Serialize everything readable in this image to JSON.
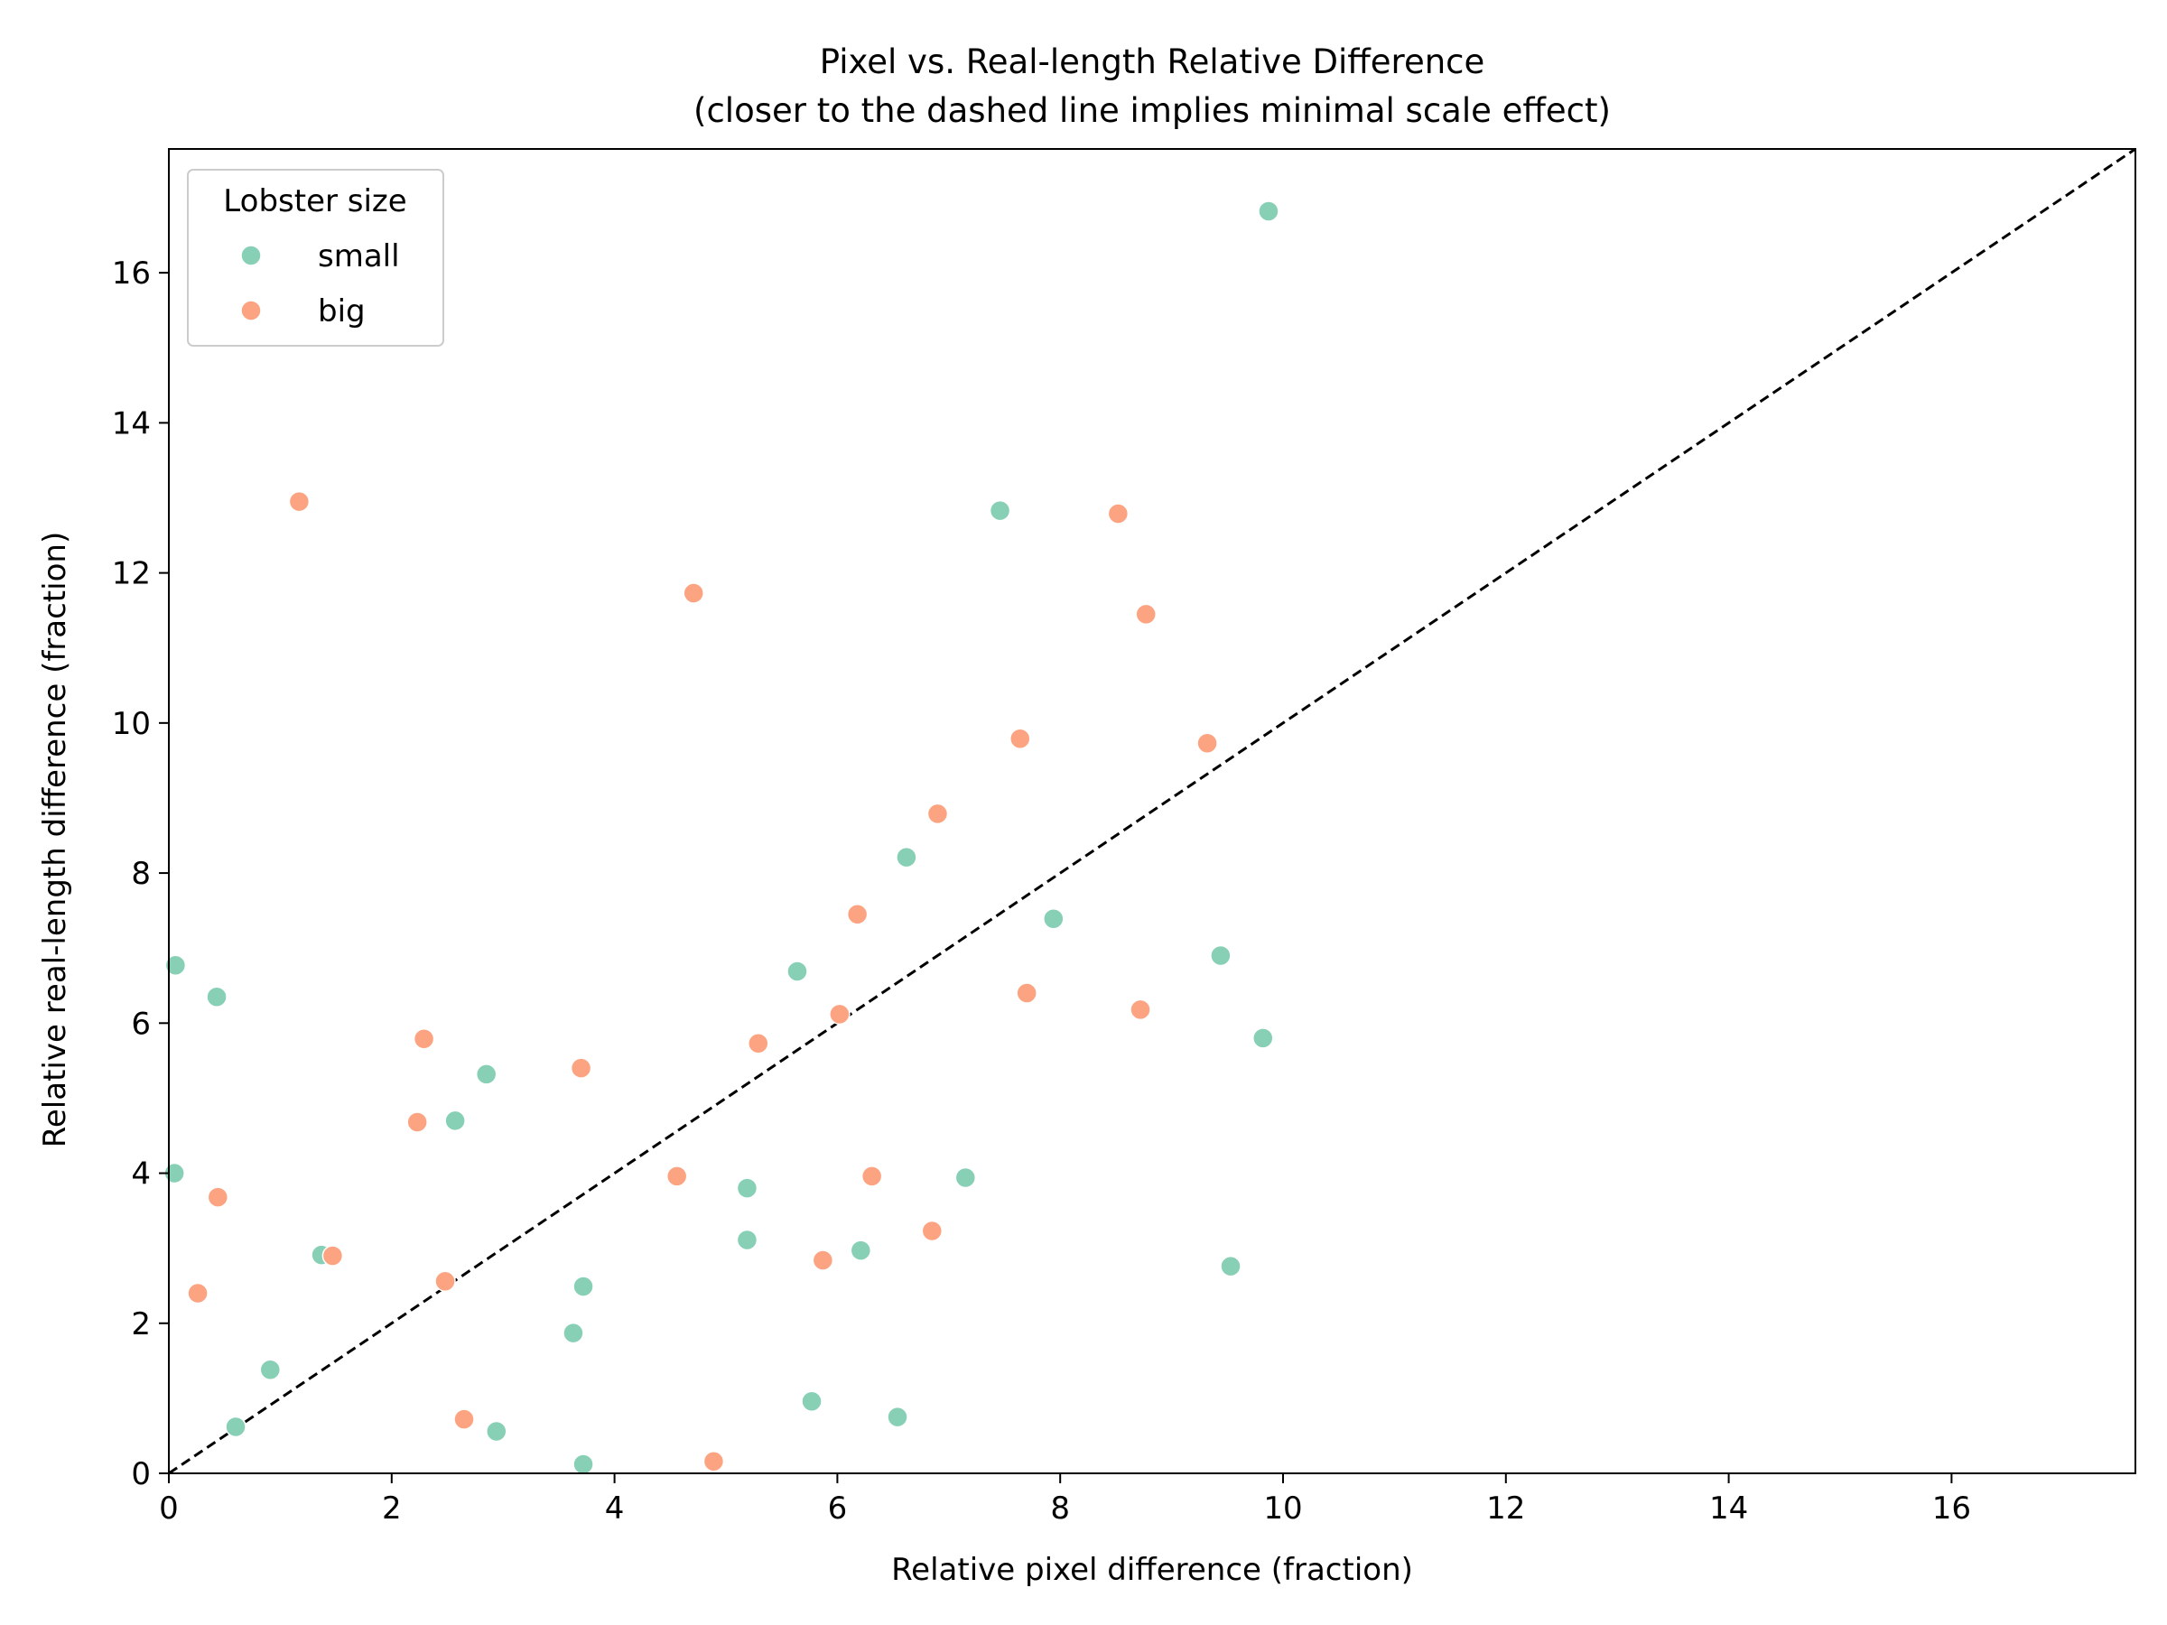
{
  "chart_data": {
    "type": "scatter",
    "title": "Pixel vs. Real-length Relative Difference",
    "subtitle": "(closer to the dashed line implies minimal scale effect)",
    "xlabel": "Relative pixel difference (fraction)",
    "ylabel": "Relative real-length difference (fraction)",
    "xlim": [
      0,
      17.65
    ],
    "ylim": [
      0,
      17.65
    ],
    "xticks": [
      0,
      2,
      4,
      6,
      8,
      10,
      12,
      14,
      16
    ],
    "yticks": [
      0,
      2,
      4,
      6,
      8,
      10,
      12,
      14,
      16
    ],
    "grid": false,
    "legend": {
      "title": "Lobster size",
      "position": "top-left"
    },
    "reference_line": {
      "style": "dashed",
      "from": [
        0,
        0
      ],
      "to": [
        17.65,
        17.65
      ],
      "color": "#000000"
    },
    "series": [
      {
        "name": "small",
        "color": "#88d0b5",
        "points": [
          [
            9.87,
            16.82
          ],
          [
            7.46,
            12.83
          ],
          [
            6.62,
            8.21
          ],
          [
            7.94,
            7.39
          ],
          [
            9.44,
            6.9
          ],
          [
            5.64,
            6.69
          ],
          [
            9.82,
            5.8
          ],
          [
            0.06,
            6.77
          ],
          [
            0.43,
            6.35
          ],
          [
            2.85,
            5.32
          ],
          [
            2.57,
            4.7
          ],
          [
            0.05,
            4.0
          ],
          [
            5.19,
            3.8
          ],
          [
            7.15,
            3.94
          ],
          [
            5.19,
            3.11
          ],
          [
            6.21,
            2.97
          ],
          [
            9.53,
            2.76
          ],
          [
            1.37,
            2.91
          ],
          [
            3.72,
            2.49
          ],
          [
            3.63,
            1.87
          ],
          [
            0.91,
            1.38
          ],
          [
            0.6,
            0.62
          ],
          [
            2.94,
            0.56
          ],
          [
            5.77,
            0.96
          ],
          [
            6.54,
            0.75
          ],
          [
            3.72,
            0.12
          ]
        ]
      },
      {
        "name": "big",
        "color": "#fca481",
        "points": [
          [
            1.17,
            12.95
          ],
          [
            4.71,
            11.73
          ],
          [
            8.52,
            12.79
          ],
          [
            8.77,
            11.45
          ],
          [
            7.64,
            9.79
          ],
          [
            9.32,
            9.73
          ],
          [
            6.9,
            8.79
          ],
          [
            6.18,
            7.45
          ],
          [
            6.02,
            6.12
          ],
          [
            7.7,
            6.4
          ],
          [
            8.72,
            6.18
          ],
          [
            5.29,
            5.73
          ],
          [
            2.29,
            5.79
          ],
          [
            3.7,
            5.4
          ],
          [
            2.23,
            4.68
          ],
          [
            4.56,
            3.96
          ],
          [
            6.31,
            3.96
          ],
          [
            0.44,
            3.68
          ],
          [
            6.85,
            3.23
          ],
          [
            5.87,
            2.84
          ],
          [
            1.47,
            2.9
          ],
          [
            2.48,
            2.56
          ],
          [
            0.26,
            2.4
          ],
          [
            2.65,
            0.72
          ],
          [
            4.89,
            0.16
          ]
        ]
      }
    ]
  }
}
